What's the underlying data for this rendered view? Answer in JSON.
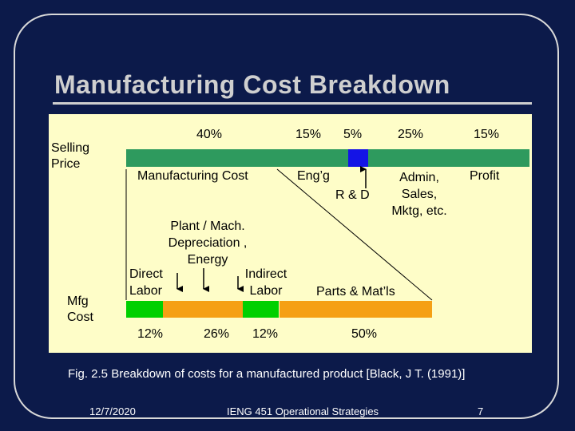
{
  "slide": {
    "title": "Manufacturing Cost Breakdown",
    "caption": "Fig. 2.5  Breakdown of costs for a manufactured product [Black, J T. (1991)]",
    "footer_date": "12/7/2020",
    "footer_course": "IENG 451 Operational Strategies",
    "footer_page": "7"
  },
  "diagram": {
    "selling_price_label": "Selling Price",
    "mfg_cost_label": "Mfg Cost",
    "top_percentages": [
      "40%",
      "15%",
      "5%",
      "25%",
      "15%"
    ],
    "top_labels": {
      "manufacturing_cost": "Manufacturing Cost",
      "engineering": "Eng’g",
      "rd": "R & D",
      "admin": "Admin, Sales, Mktg, etc.",
      "profit": "Profit"
    },
    "mid_labels": {
      "plant": "Plant / Mach. Depreciation , Energy",
      "direct_labor": "Direct Labor",
      "indirect_labor": "Indirect Labor",
      "parts": "Parts & Mat’ls"
    },
    "bottom_percentages": [
      "12%",
      "26%",
      "12%",
      "50%"
    ],
    "top_bar": [
      {
        "value": 40,
        "color": "#2e9a5e"
      },
      {
        "value": 15,
        "color": "#2e9a5e"
      },
      {
        "value": 5,
        "color": "#1414e6"
      },
      {
        "value": 25,
        "color": "#2e9a5e"
      },
      {
        "value": 15,
        "color": "#2e9a5e"
      }
    ],
    "bottom_bar": [
      {
        "value": 12,
        "color": "#00d000"
      },
      {
        "value": 26,
        "color": "#f5a015"
      },
      {
        "value": 12,
        "color": "#00d000"
      },
      {
        "value": 50,
        "color": "#f5a015"
      }
    ]
  }
}
